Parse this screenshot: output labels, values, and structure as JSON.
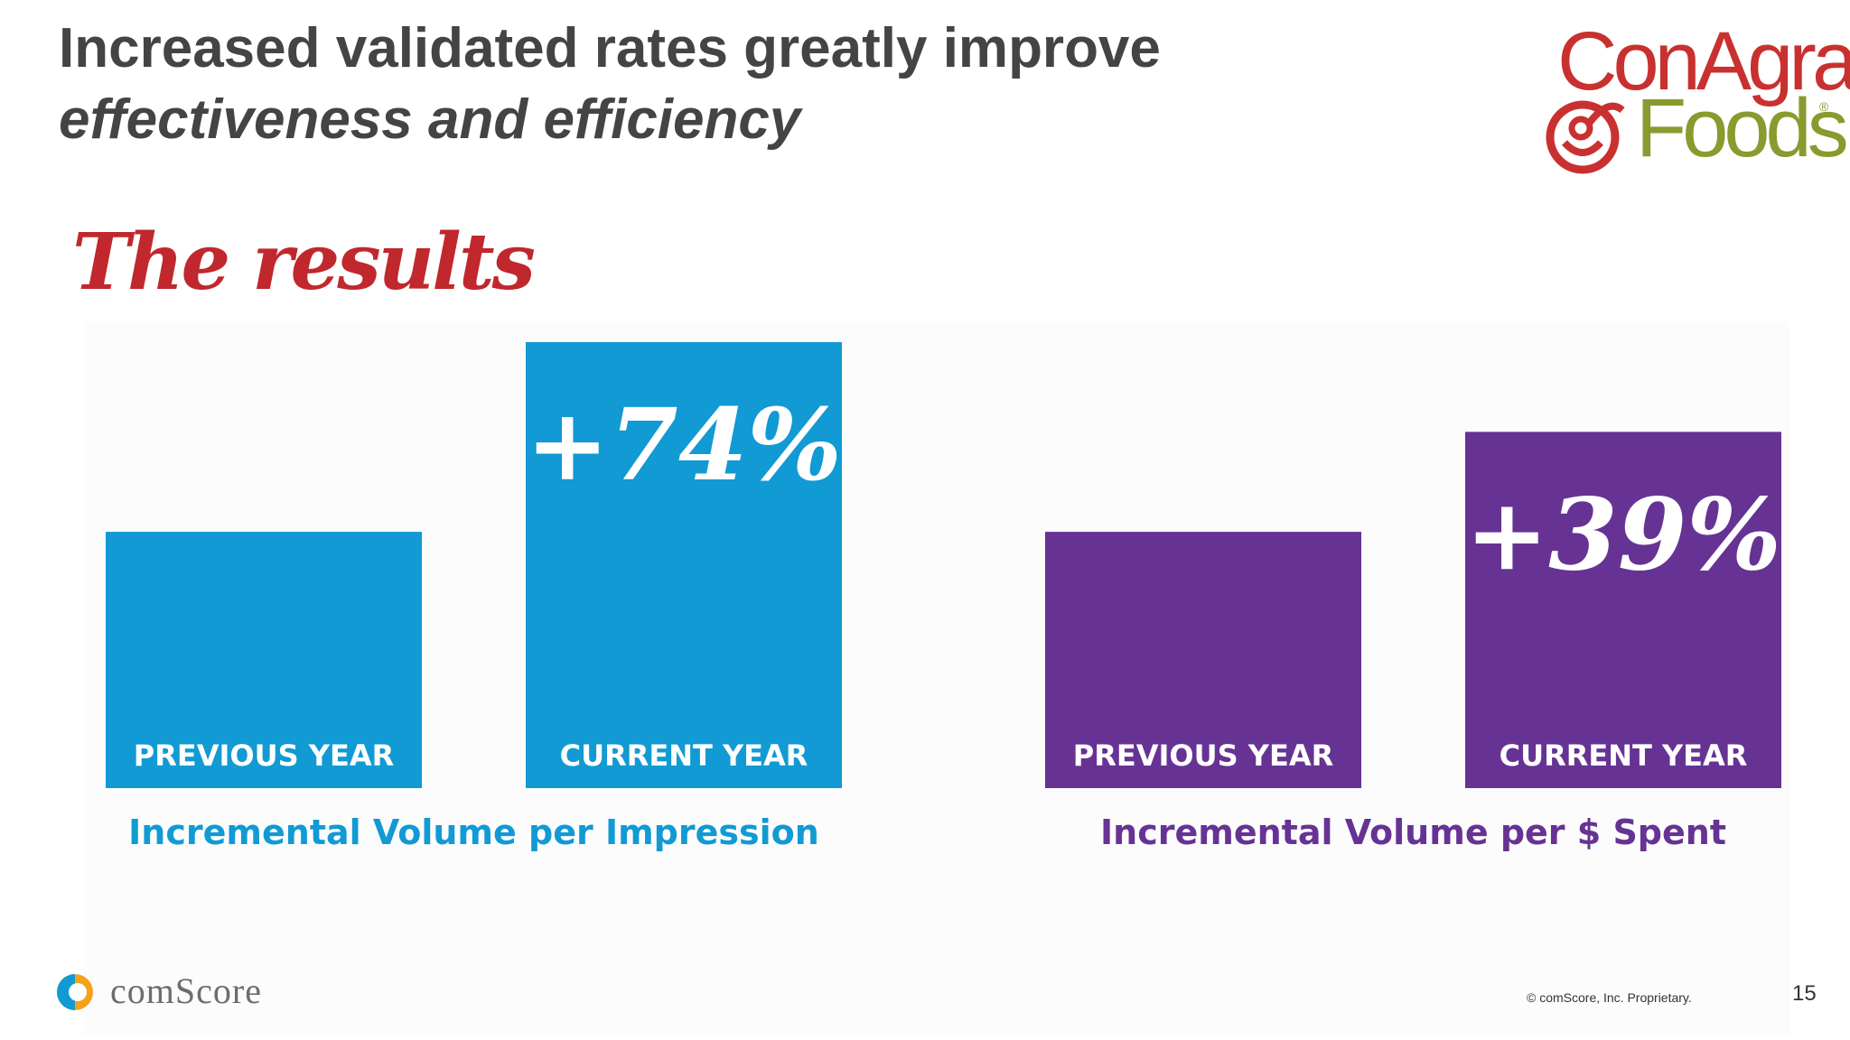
{
  "slide": {
    "title_line1": "Increased validated rates greatly improve",
    "title_line2": "effectiveness and efficiency",
    "results_heading": "The results",
    "page_number": "15",
    "copyright": "© comScore, Inc. Proprietary."
  },
  "logos": {
    "conagra_top": "ConAgra",
    "conagra_bottom": "Foods",
    "comscore": "comScore"
  },
  "colors": {
    "blue": "#119ad3",
    "purple": "#663394",
    "title": "#444444",
    "heading_red": "#c0282d"
  },
  "chart_data": [
    {
      "type": "bar",
      "title": "Incremental Volume per Impression",
      "categories": [
        "PREVIOUS YEAR",
        "CURRENT YEAR"
      ],
      "values": [
        1.0,
        1.74
      ],
      "annotation": "+74%",
      "color": "#119ad3"
    },
    {
      "type": "bar",
      "title": "Incremental Volume per $ Spent",
      "categories": [
        "PREVIOUS YEAR",
        "CURRENT YEAR"
      ],
      "values": [
        1.0,
        1.39
      ],
      "annotation": "+39%",
      "color": "#663394"
    }
  ]
}
